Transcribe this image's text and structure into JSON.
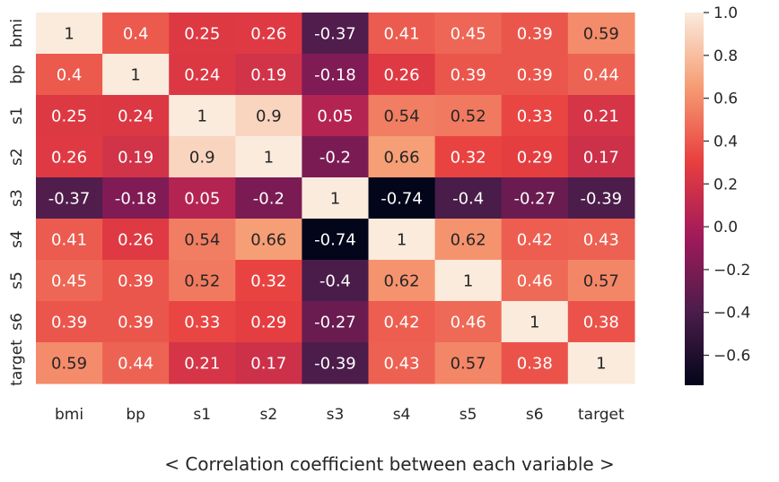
{
  "caption": "< Correlation coefficient between each variable >",
  "chart_data": {
    "type": "heatmap",
    "title": "",
    "variables": [
      "bmi",
      "bp",
      "s1",
      "s2",
      "s3",
      "s4",
      "s5",
      "s6",
      "target"
    ],
    "values": [
      [
        1,
        0.4,
        0.25,
        0.26,
        -0.37,
        0.41,
        0.45,
        0.39,
        0.59
      ],
      [
        0.4,
        1,
        0.24,
        0.19,
        -0.18,
        0.26,
        0.39,
        0.39,
        0.44
      ],
      [
        0.25,
        0.24,
        1,
        0.9,
        0.05,
        0.54,
        0.52,
        0.33,
        0.21
      ],
      [
        0.26,
        0.19,
        0.9,
        1,
        -0.2,
        0.66,
        0.32,
        0.29,
        0.17
      ],
      [
        -0.37,
        -0.18,
        0.05,
        -0.2,
        1,
        -0.74,
        -0.4,
        -0.27,
        -0.39
      ],
      [
        0.41,
        0.26,
        0.54,
        0.66,
        -0.74,
        1,
        0.62,
        0.42,
        0.43
      ],
      [
        0.45,
        0.39,
        0.52,
        0.32,
        -0.4,
        0.62,
        1,
        0.46,
        0.57
      ],
      [
        0.39,
        0.39,
        0.33,
        0.29,
        -0.27,
        0.42,
        0.46,
        1,
        0.38
      ],
      [
        0.59,
        0.44,
        0.21,
        0.17,
        -0.39,
        0.43,
        0.57,
        0.38,
        1
      ]
    ],
    "value_range": [
      -0.74,
      1.0
    ],
    "colorbar_ticks": [
      1.0,
      0.8,
      0.6,
      0.4,
      0.2,
      0.0,
      -0.2,
      -0.4,
      -0.6
    ],
    "colorbar_tick_labels": [
      "1.0",
      "0.8",
      "0.6",
      "0.4",
      "0.2",
      "0.0",
      "−0.2",
      "−0.4",
      "−0.6"
    ],
    "colormap": [
      "#03051a",
      "#4c1d4b",
      "#a11a5b",
      "#e83f3f",
      "#f69c73",
      "#faebdd"
    ],
    "annotations": true
  }
}
